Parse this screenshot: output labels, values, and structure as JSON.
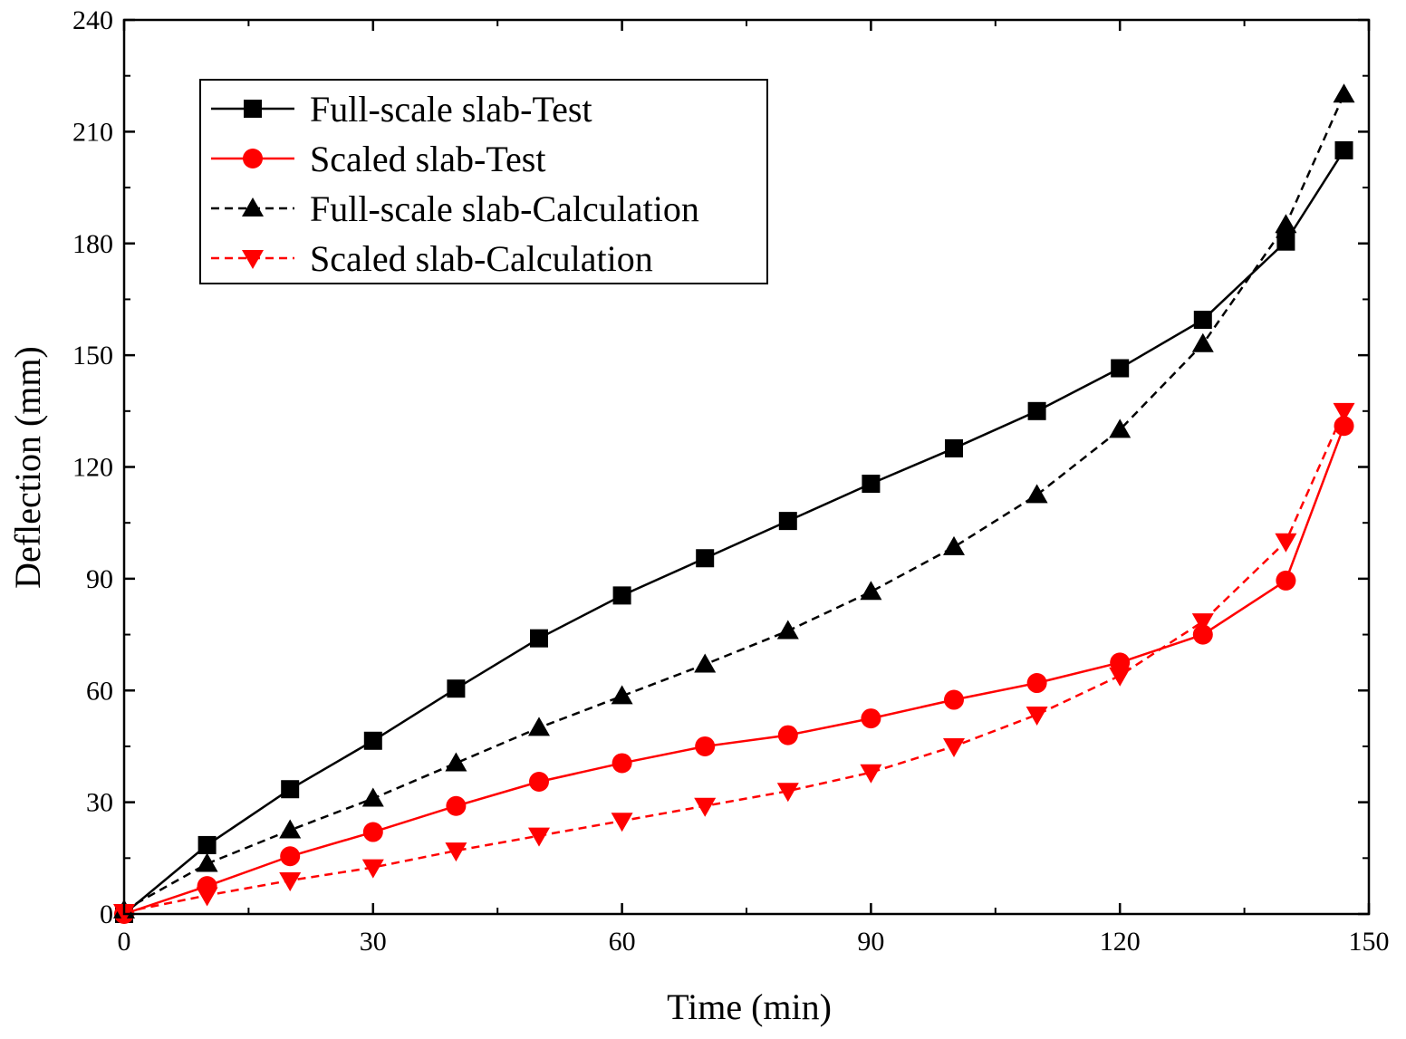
{
  "chart_data": {
    "type": "line",
    "title": "",
    "xlabel": "Time (min)",
    "ylabel": "Deflection (mm)",
    "xlim": [
      0,
      150
    ],
    "ylim": [
      0,
      240
    ],
    "xticks": [
      0,
      30,
      60,
      90,
      120,
      150
    ],
    "yticks": [
      0,
      30,
      60,
      90,
      120,
      150,
      180,
      210,
      240
    ],
    "grid": false,
    "legend_position": "top-left",
    "series": [
      {
        "name": "Full-scale slab-Test",
        "color": "#000000",
        "line": "solid",
        "marker": "square",
        "x": [
          0,
          10,
          20,
          30,
          40,
          50,
          60,
          70,
          80,
          90,
          100,
          110,
          120,
          130,
          140,
          147
        ],
        "y": [
          0,
          18.5,
          33.5,
          46.5,
          60.5,
          74,
          85.5,
          95.5,
          105.5,
          115.5,
          125,
          135,
          146.5,
          159.5,
          180.5,
          205
        ]
      },
      {
        "name": "Scaled slab-Test",
        "color": "#ff0000",
        "line": "solid",
        "marker": "circle",
        "x": [
          0,
          10,
          20,
          30,
          40,
          50,
          60,
          70,
          80,
          90,
          100,
          110,
          120,
          130,
          140,
          147
        ],
        "y": [
          0,
          7.5,
          15.5,
          22,
          29,
          35.5,
          40.5,
          45,
          48,
          52.5,
          57.5,
          62,
          67.5,
          75,
          89.5,
          131
        ]
      },
      {
        "name": "Full-scale slab-Calculation",
        "color": "#000000",
        "line": "dashed",
        "marker": "triangle-up",
        "x": [
          0,
          10,
          20,
          30,
          40,
          50,
          60,
          70,
          80,
          90,
          100,
          110,
          120,
          130,
          140,
          147
        ],
        "y": [
          1,
          13.5,
          22.5,
          31,
          40.5,
          50,
          58.5,
          67,
          76,
          86.5,
          98.5,
          112.5,
          130,
          153,
          185,
          220
        ]
      },
      {
        "name": "Scaled slab-Calculation",
        "color": "#ff0000",
        "line": "dashed",
        "marker": "triangle-down",
        "x": [
          0,
          10,
          20,
          30,
          40,
          50,
          60,
          70,
          80,
          90,
          100,
          110,
          120,
          130,
          140,
          147
        ],
        "y": [
          0.5,
          5,
          9,
          12.5,
          17,
          21,
          25,
          29,
          33,
          38,
          45,
          53.5,
          64,
          78.5,
          100,
          135
        ]
      }
    ]
  }
}
